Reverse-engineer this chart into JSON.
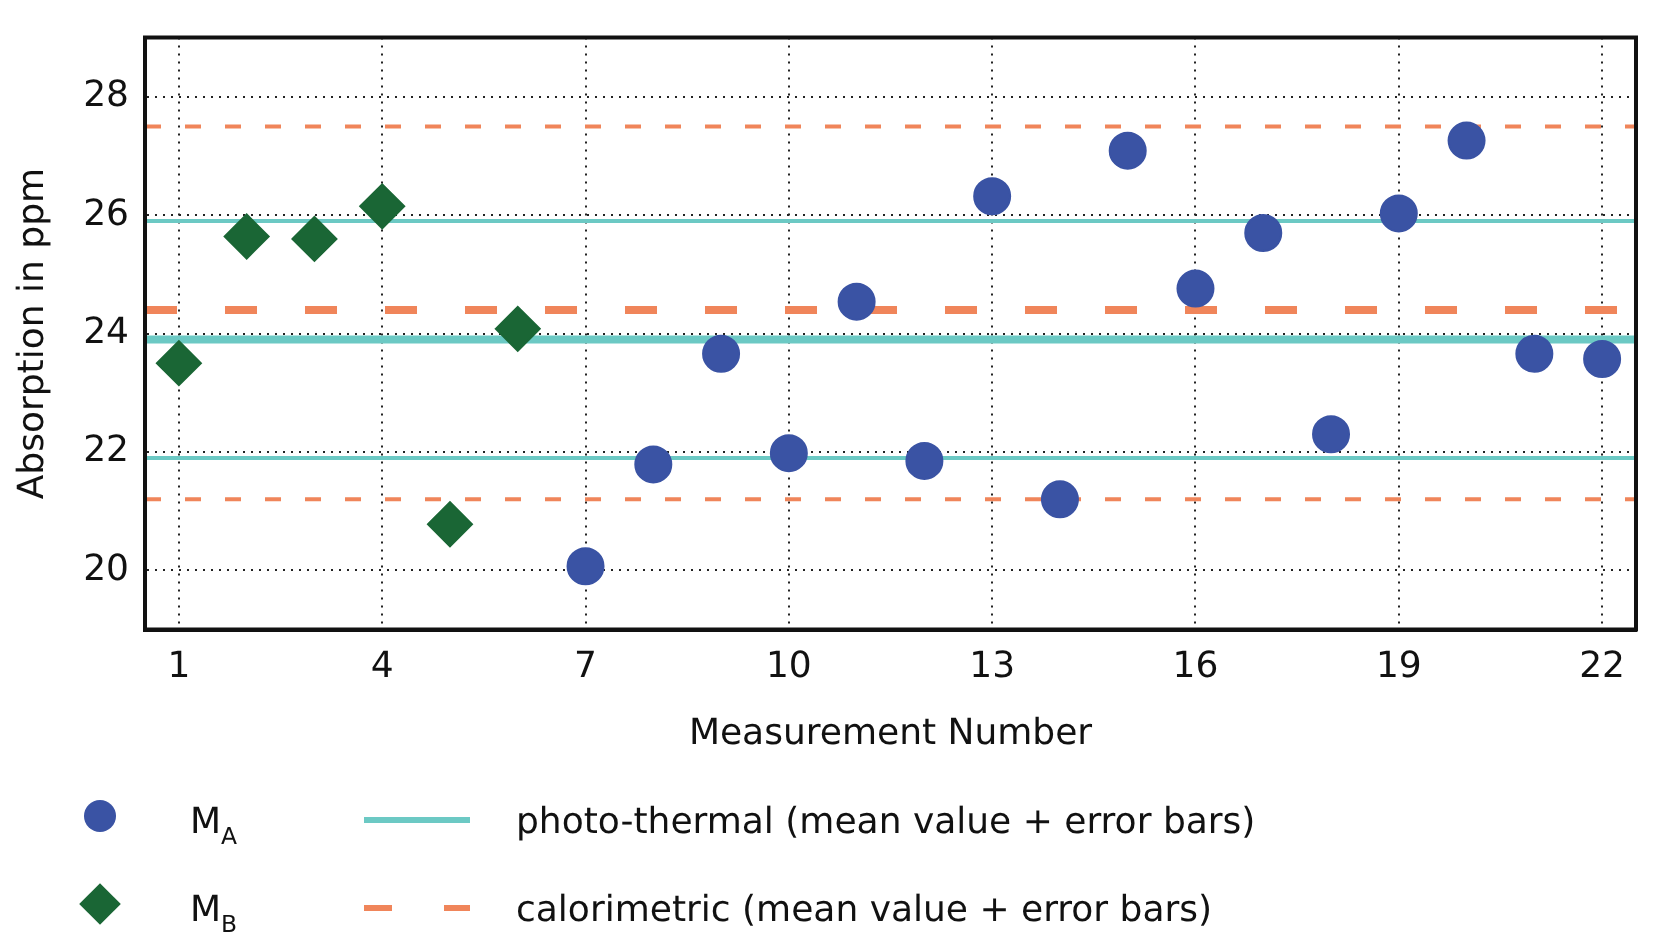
{
  "chart_data": {
    "type": "scatter",
    "xlabel": "Measurement Number",
    "ylabel": "Absorption in ppm",
    "xlim": [
      0.5,
      22.5
    ],
    "xticks": [
      1,
      4,
      7,
      10,
      13,
      16,
      19,
      22
    ],
    "ylim": [
      19,
      29
    ],
    "yticks": [
      20,
      22,
      24,
      26,
      28
    ],
    "grid": true,
    "legend": "bottom",
    "series": [
      {
        "name": "M$_{A}$",
        "color": "#3a53a4",
        "marker": "circle",
        "x": [
          7,
          8,
          9,
          10,
          11,
          12,
          13,
          14,
          15,
          16,
          17,
          18,
          19,
          20,
          21,
          22
        ],
        "values": [
          20.07,
          21.79,
          23.66,
          21.98,
          24.54,
          21.85,
          26.32,
          21.2,
          27.09,
          24.76,
          25.7,
          22.3,
          26.03,
          27.26,
          23.66,
          23.57
        ]
      },
      {
        "name": "M$_{B}$",
        "color": "#1a6635",
        "marker": "diamond",
        "x": [
          1,
          2,
          3,
          4,
          5,
          6
        ],
        "values": [
          23.5,
          25.64,
          25.6,
          26.15,
          20.78,
          24.08
        ]
      }
    ],
    "ref_lines": [
      {
        "axis": "y",
        "value": 23.9,
        "label": "photo-thermal (mean value + error bars)",
        "color": "#6cc9c4",
        "line_style": "solid"
      },
      {
        "axis": "y",
        "value": 25.9,
        "color": "#6cc9c4",
        "line_style": "solid"
      },
      {
        "axis": "y",
        "value": 21.9,
        "color": "#6cc9c4",
        "line_style": "solid"
      },
      {
        "axis": "y",
        "value": 24.4,
        "label": "calorimetric (mean value + error bars)",
        "color": "#f0855a",
        "line_style": "dashed"
      },
      {
        "axis": "y",
        "value": 27.5,
        "color": "#f0855a",
        "line_style": "dashed"
      },
      {
        "axis": "y",
        "value": 21.2,
        "color": "#f0855a",
        "line_style": "dashed"
      }
    ]
  }
}
